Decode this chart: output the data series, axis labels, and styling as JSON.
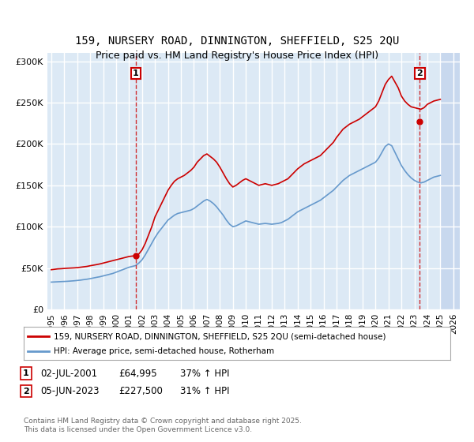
{
  "title": "159, NURSERY ROAD, DINNINGTON, SHEFFIELD, S25 2QU",
  "subtitle": "Price paid vs. HM Land Registry's House Price Index (HPI)",
  "ylabel_ticks": [
    "£0",
    "£50K",
    "£100K",
    "£150K",
    "£200K",
    "£250K",
    "£300K"
  ],
  "ylim": [
    0,
    310000
  ],
  "xlim_start": 1995.0,
  "xlim_end": 2026.5,
  "background_color": "#ffffff",
  "plot_bg_color": "#dce9f5",
  "future_hatch_color": "#c8d8ee",
  "grid_color": "#ffffff",
  "red_line_color": "#cc0000",
  "blue_line_color": "#6699cc",
  "transaction1_date": 2001.5,
  "transaction1_price": 64995,
  "transaction2_date": 2023.42,
  "transaction2_price": 227500,
  "legend_label_red": "159, NURSERY ROAD, DINNINGTON, SHEFFIELD, S25 2QU (semi-detached house)",
  "legend_label_blue": "HPI: Average price, semi-detached house, Rotherham",
  "annotation1_label": "1",
  "annotation2_label": "2",
  "note1_text": "1     02-JUL-2001          £64,995          37% ↑ HPI",
  "note2_text": "2     05-JUN-2023          £227,500        31% ↑ HPI",
  "footer": "Contains HM Land Registry data © Crown copyright and database right 2025.\nThis data is licensed under the Open Government Licence v3.0.",
  "red_line_x": [
    1995.0,
    1995.25,
    1995.5,
    1995.75,
    1996.0,
    1996.25,
    1996.5,
    1996.75,
    1997.0,
    1997.25,
    1997.5,
    1997.75,
    1998.0,
    1998.25,
    1998.5,
    1998.75,
    1999.0,
    1999.25,
    1999.5,
    1999.75,
    2000.0,
    2000.25,
    2000.5,
    2000.75,
    2001.0,
    2001.25,
    2001.5,
    2001.75,
    2002.0,
    2002.25,
    2002.5,
    2002.75,
    2003.0,
    2003.25,
    2003.5,
    2003.75,
    2004.0,
    2004.25,
    2004.5,
    2004.75,
    2005.0,
    2005.25,
    2005.5,
    2005.75,
    2006.0,
    2006.25,
    2006.5,
    2006.75,
    2007.0,
    2007.25,
    2007.5,
    2007.75,
    2008.0,
    2008.25,
    2008.5,
    2008.75,
    2009.0,
    2009.25,
    2009.5,
    2009.75,
    2010.0,
    2010.25,
    2010.5,
    2010.75,
    2011.0,
    2011.25,
    2011.5,
    2011.75,
    2012.0,
    2012.25,
    2012.5,
    2012.75,
    2013.0,
    2013.25,
    2013.5,
    2013.75,
    2014.0,
    2014.25,
    2014.5,
    2014.75,
    2015.0,
    2015.25,
    2015.5,
    2015.75,
    2016.0,
    2016.25,
    2016.5,
    2016.75,
    2017.0,
    2017.25,
    2017.5,
    2017.75,
    2018.0,
    2018.25,
    2018.5,
    2018.75,
    2019.0,
    2019.25,
    2019.5,
    2019.75,
    2020.0,
    2020.25,
    2020.5,
    2020.75,
    2021.0,
    2021.25,
    2021.5,
    2021.75,
    2022.0,
    2022.25,
    2022.5,
    2022.75,
    2023.0,
    2023.25,
    2023.5,
    2023.75,
    2024.0,
    2024.25,
    2024.5,
    2024.75,
    2025.0
  ],
  "red_line_y": [
    48000,
    48500,
    49000,
    49200,
    49500,
    49800,
    50000,
    50200,
    50500,
    51000,
    51500,
    52000,
    52800,
    53500,
    54200,
    55000,
    56000,
    57000,
    58000,
    59000,
    60000,
    61000,
    62000,
    63000,
    64000,
    64500,
    64995,
    67000,
    72000,
    80000,
    90000,
    100000,
    112000,
    120000,
    128000,
    136000,
    144000,
    150000,
    155000,
    158000,
    160000,
    162000,
    165000,
    168000,
    172000,
    178000,
    182000,
    186000,
    188000,
    185000,
    182000,
    178000,
    172000,
    165000,
    158000,
    152000,
    148000,
    150000,
    153000,
    156000,
    158000,
    156000,
    154000,
    152000,
    150000,
    151000,
    152000,
    151000,
    150000,
    151000,
    152000,
    154000,
    156000,
    158000,
    162000,
    166000,
    170000,
    173000,
    176000,
    178000,
    180000,
    182000,
    184000,
    186000,
    190000,
    194000,
    198000,
    202000,
    208000,
    213000,
    218000,
    221000,
    224000,
    226000,
    228000,
    230000,
    233000,
    236000,
    239000,
    242000,
    245000,
    252000,
    262000,
    272000,
    278000,
    282000,
    275000,
    268000,
    258000,
    252000,
    248000,
    245000,
    244000,
    243000,
    242000,
    244000,
    248000,
    250000,
    252000,
    253000,
    254000
  ],
  "blue_line_x": [
    1995.0,
    1995.25,
    1995.5,
    1995.75,
    1996.0,
    1996.25,
    1996.5,
    1996.75,
    1997.0,
    1997.25,
    1997.5,
    1997.75,
    1998.0,
    1998.25,
    1998.5,
    1998.75,
    1999.0,
    1999.25,
    1999.5,
    1999.75,
    2000.0,
    2000.25,
    2000.5,
    2000.75,
    2001.0,
    2001.25,
    2001.5,
    2001.75,
    2002.0,
    2002.25,
    2002.5,
    2002.75,
    2003.0,
    2003.25,
    2003.5,
    2003.75,
    2004.0,
    2004.25,
    2004.5,
    2004.75,
    2005.0,
    2005.25,
    2005.5,
    2005.75,
    2006.0,
    2006.25,
    2006.5,
    2006.75,
    2007.0,
    2007.25,
    2007.5,
    2007.75,
    2008.0,
    2008.25,
    2008.5,
    2008.75,
    2009.0,
    2009.25,
    2009.5,
    2009.75,
    2010.0,
    2010.25,
    2010.5,
    2010.75,
    2011.0,
    2011.25,
    2011.5,
    2011.75,
    2012.0,
    2012.25,
    2012.5,
    2012.75,
    2013.0,
    2013.25,
    2013.5,
    2013.75,
    2014.0,
    2014.25,
    2014.5,
    2014.75,
    2015.0,
    2015.25,
    2015.5,
    2015.75,
    2016.0,
    2016.25,
    2016.5,
    2016.75,
    2017.0,
    2017.25,
    2017.5,
    2017.75,
    2018.0,
    2018.25,
    2018.5,
    2018.75,
    2019.0,
    2019.25,
    2019.5,
    2019.75,
    2020.0,
    2020.25,
    2020.5,
    2020.75,
    2021.0,
    2021.25,
    2021.5,
    2021.75,
    2022.0,
    2022.25,
    2022.5,
    2022.75,
    2023.0,
    2023.25,
    2023.5,
    2023.75,
    2024.0,
    2024.25,
    2024.5,
    2024.75,
    2025.0
  ],
  "blue_line_y": [
    33000,
    33200,
    33400,
    33600,
    33800,
    34000,
    34300,
    34600,
    35000,
    35400,
    36000,
    36500,
    37200,
    38000,
    38800,
    39500,
    40500,
    41500,
    42500,
    43500,
    45000,
    46500,
    48000,
    49500,
    51000,
    52000,
    53000,
    56000,
    60000,
    66000,
    73000,
    80000,
    87000,
    93000,
    98000,
    103000,
    108000,
    111000,
    114000,
    116000,
    117000,
    118000,
    119000,
    120000,
    122000,
    125000,
    128000,
    131000,
    133000,
    131000,
    128000,
    124000,
    119000,
    114000,
    108000,
    103000,
    100000,
    101000,
    103000,
    105000,
    107000,
    106000,
    105000,
    104000,
    103000,
    103500,
    104000,
    103500,
    103000,
    103500,
    104000,
    105000,
    107000,
    109000,
    112000,
    115000,
    118000,
    120000,
    122000,
    124000,
    126000,
    128000,
    130000,
    132000,
    135000,
    138000,
    141000,
    144000,
    148000,
    152000,
    156000,
    159000,
    162000,
    164000,
    166000,
    168000,
    170000,
    172000,
    174000,
    176000,
    178000,
    183000,
    190000,
    197000,
    200000,
    198000,
    190000,
    182000,
    174000,
    168000,
    163000,
    159000,
    156000,
    154000,
    153000,
    154000,
    156000,
    158000,
    160000,
    161000,
    162000
  ],
  "future_start": 2025.0,
  "xticks": [
    1995,
    1996,
    1997,
    1998,
    1999,
    2000,
    2001,
    2002,
    2003,
    2004,
    2005,
    2006,
    2007,
    2008,
    2009,
    2010,
    2011,
    2012,
    2013,
    2014,
    2015,
    2016,
    2017,
    2018,
    2019,
    2020,
    2021,
    2022,
    2023,
    2024,
    2025,
    2026
  ]
}
